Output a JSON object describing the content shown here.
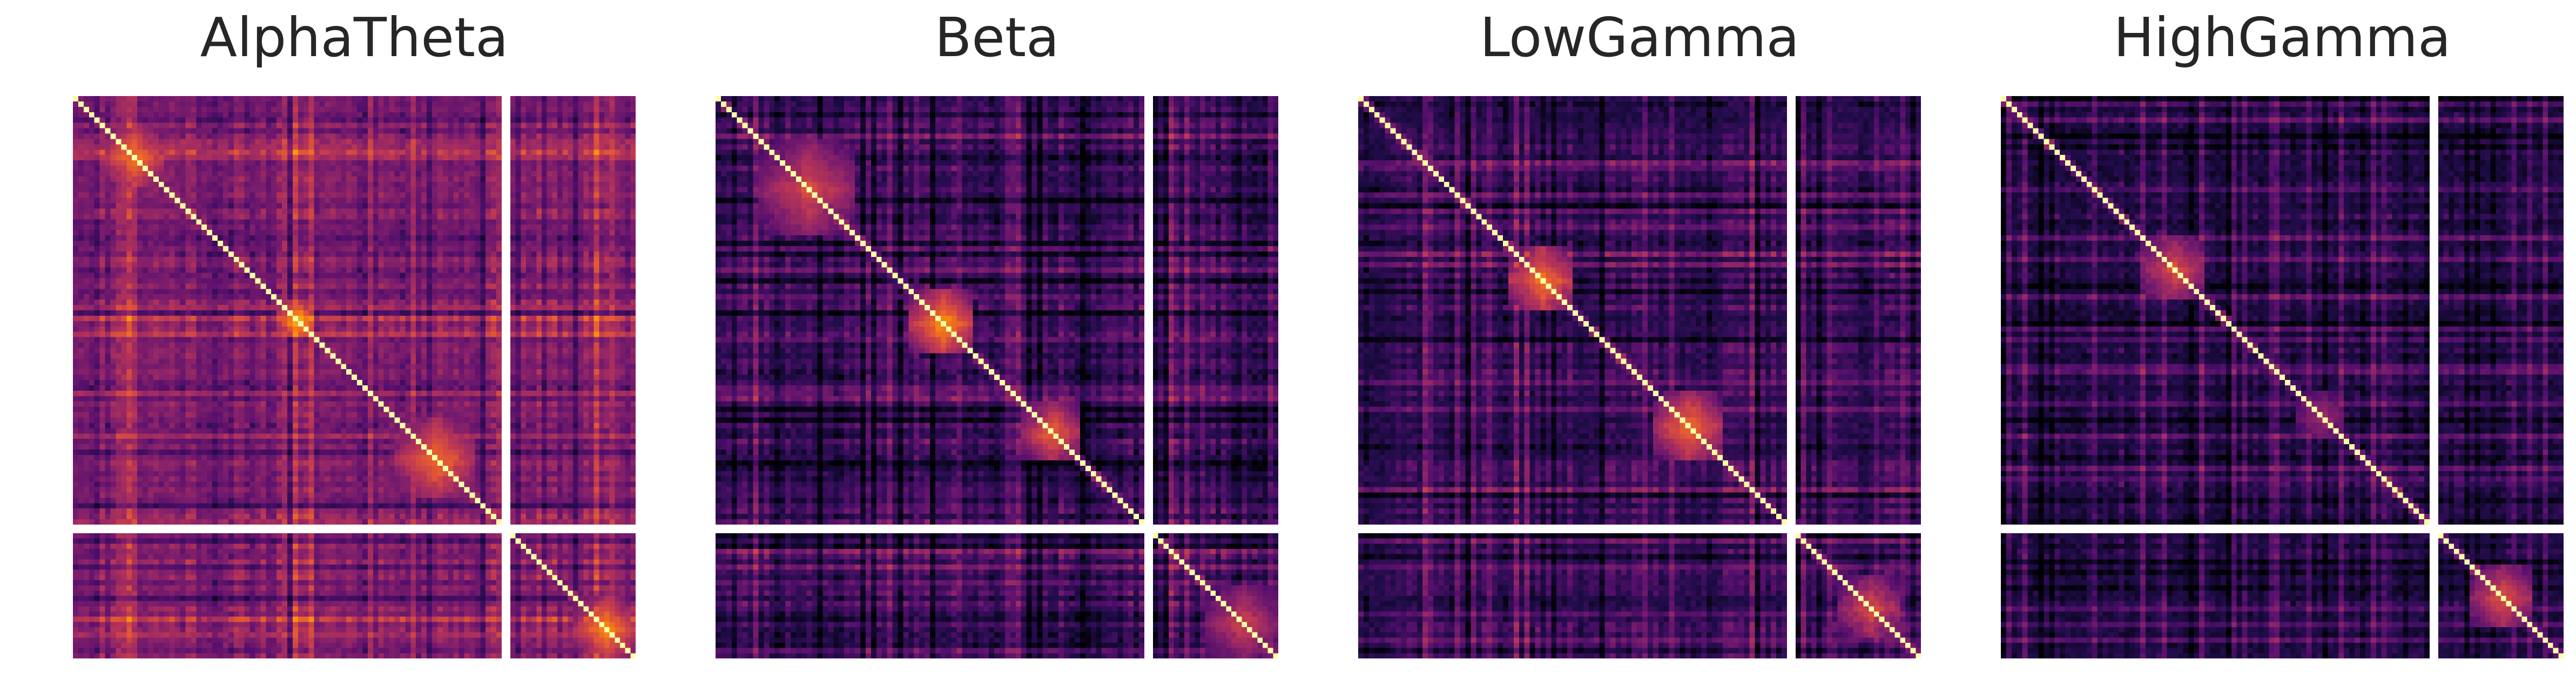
{
  "chart_data": [
    {
      "type": "heatmap",
      "title": "AlphaTheta",
      "colormap": "inferno",
      "blocks": [
        "top-left",
        "top-right",
        "bottom-left",
        "bottom-right"
      ],
      "features": {
        "diagonal": "bright",
        "bright_clusters": "upper-left checkered cluster, central cluster, lower-right checkered cluster",
        "off_diagonal_level": "moderate purple/orange"
      }
    },
    {
      "type": "heatmap",
      "title": "Beta",
      "colormap": "inferno",
      "blocks": [
        "top-left",
        "top-right",
        "bottom-left",
        "bottom-right"
      ],
      "features": {
        "diagonal": "bright",
        "bright_clusters": "upper-left orange cluster, central cluster, lower-right cluster",
        "off_diagonal_level": "dark purple"
      }
    },
    {
      "type": "heatmap",
      "title": "LowGamma",
      "colormap": "inferno",
      "blocks": [
        "top-left",
        "top-right",
        "bottom-left",
        "bottom-right"
      ],
      "features": {
        "diagonal": "bright",
        "bright_clusters": "central cluster, lower-right ring-shaped cluster",
        "off_diagonal_level": "dark purple"
      }
    },
    {
      "type": "heatmap",
      "title": "HighGamma",
      "colormap": "inferno",
      "blocks": [
        "top-left",
        "top-right",
        "bottom-left",
        "bottom-right"
      ],
      "features": {
        "diagonal": "bright",
        "bright_clusters": "small central cluster, faint lower-right cluster",
        "off_diagonal_level": "very dark purple"
      }
    }
  ]
}
